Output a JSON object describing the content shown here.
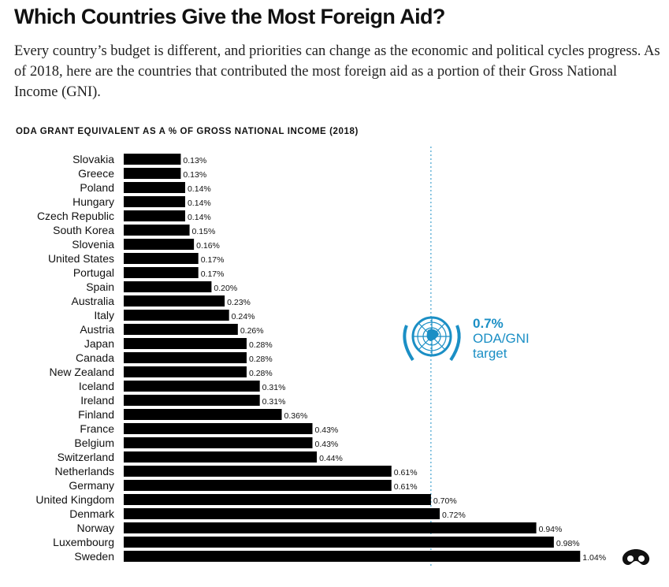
{
  "header": {
    "title": "Which Countries Give the Most Foreign Aid?",
    "subtitle": "Every country’s budget is different, and priorities can change as the economic and political cycles progress. As of 2018, here are the countries that contributed the most foreign aid as a portion of their Gross National Income (GNI)."
  },
  "chart_data": {
    "type": "bar",
    "orientation": "horizontal",
    "title": "ODA GRANT EQUIVALENT AS A % OF GROSS NATIONAL INCOME (2018)",
    "categories": [
      "Slovakia",
      "Greece",
      "Poland",
      "Hungary",
      "Czech Republic",
      "South Korea",
      "Slovenia",
      "United States",
      "Portugal",
      "Spain",
      "Australia",
      "Italy",
      "Austria",
      "Japan",
      "Canada",
      "New Zealand",
      "Iceland",
      "Ireland",
      "Finland",
      "France",
      "Belgium",
      "Switzerland",
      "Netherlands",
      "Germany",
      "United Kingdom",
      "Denmark",
      "Norway",
      "Luxembourg",
      "Sweden"
    ],
    "values": [
      0.13,
      0.13,
      0.14,
      0.14,
      0.14,
      0.15,
      0.16,
      0.17,
      0.17,
      0.2,
      0.23,
      0.24,
      0.26,
      0.28,
      0.28,
      0.28,
      0.31,
      0.31,
      0.36,
      0.43,
      0.43,
      0.44,
      0.61,
      0.61,
      0.7,
      0.72,
      0.94,
      0.98,
      1.04
    ],
    "value_labels": [
      "0.13%",
      "0.13%",
      "0.14%",
      "0.14%",
      "0.14%",
      "0.15%",
      "0.16%",
      "0.17%",
      "0.17%",
      "0.20%",
      "0.23%",
      "0.24%",
      "0.26%",
      "0.28%",
      "0.28%",
      "0.28%",
      "0.31%",
      "0.31%",
      "0.36%",
      "0.43%",
      "0.43%",
      "0.44%",
      "0.61%",
      "0.61%",
      "0.70%",
      "0.72%",
      "0.94%",
      "0.98%",
      "1.04%"
    ],
    "xlim": [
      0,
      1.04
    ],
    "grid": false,
    "bar_color": "#000000",
    "reference_line": {
      "value": 0.7,
      "value_label": "0.7%",
      "label_lines": [
        "ODA/GNI",
        "target"
      ],
      "style": "dotted",
      "color": "#1b8fc5"
    }
  },
  "icons": {
    "un_emblem": "un-emblem-icon",
    "logo": "brand-logo-icon"
  }
}
